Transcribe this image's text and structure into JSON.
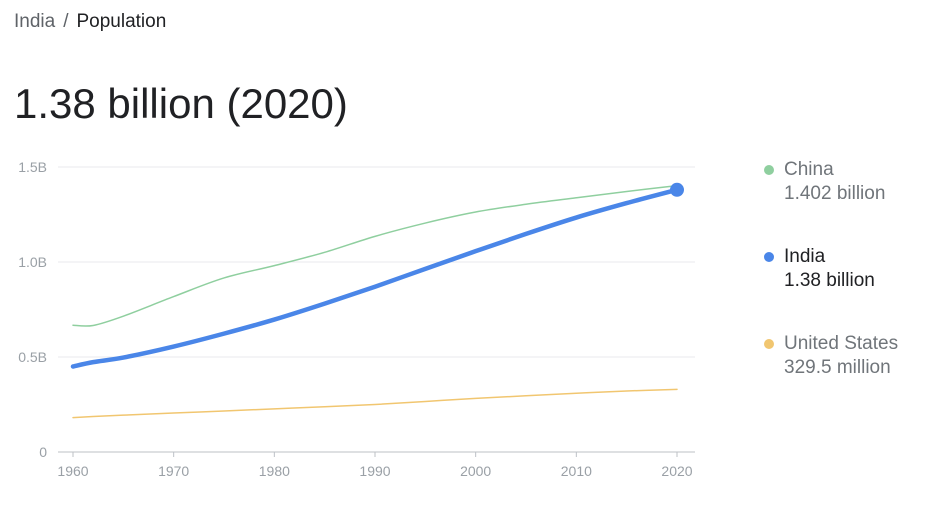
{
  "breadcrumb": {
    "root": "India",
    "separator": "/",
    "current": "Population"
  },
  "headline": "1.38 billion (2020)",
  "chart_data": {
    "type": "line",
    "title": "",
    "xlabel": "",
    "ylabel": "",
    "xlim": [
      1960,
      2020
    ],
    "ylim": [
      0,
      1.5
    ],
    "x_ticks": [
      1960,
      1970,
      1980,
      1990,
      2000,
      2010,
      2020
    ],
    "x_tick_labels": [
      "1960",
      "1970",
      "1980",
      "1990",
      "2000",
      "2010",
      "2020"
    ],
    "y_ticks": [
      0,
      0.5,
      1.0,
      1.5
    ],
    "y_tick_labels": [
      "0",
      "0.5B",
      "1.0B",
      "1.5B"
    ],
    "grid": true,
    "legend_position": "right",
    "x": [
      1960,
      1962,
      1965,
      1970,
      1975,
      1980,
      1985,
      1990,
      1995,
      2000,
      2005,
      2010,
      2015,
      2020
    ],
    "series": [
      {
        "name": "China",
        "color": "#8fcf9f",
        "width": 1.5,
        "values": [
          0.667,
          0.666,
          0.715,
          0.818,
          0.916,
          0.981,
          1.051,
          1.135,
          1.205,
          1.263,
          1.304,
          1.338,
          1.371,
          1.402
        ]
      },
      {
        "name": "India",
        "color": "#4a86e8",
        "width": 4.5,
        "values": [
          0.45,
          0.473,
          0.497,
          0.555,
          0.623,
          0.697,
          0.781,
          0.87,
          0.964,
          1.057,
          1.148,
          1.234,
          1.31,
          1.38
        ]
      },
      {
        "name": "United States",
        "color": "#f1c670",
        "width": 1.5,
        "values": [
          0.181,
          0.187,
          0.194,
          0.205,
          0.216,
          0.227,
          0.238,
          0.25,
          0.266,
          0.282,
          0.296,
          0.309,
          0.321,
          0.3295
        ]
      }
    ],
    "highlight": {
      "series": "India",
      "x": 2020,
      "y": 1.38
    }
  },
  "legend": [
    {
      "name": "China",
      "value": "1.402 billion",
      "color": "#8fcf9f",
      "active": false
    },
    {
      "name": "India",
      "value": "1.38 billion",
      "color": "#4a86e8",
      "active": true
    },
    {
      "name": "United States",
      "value": "329.5 million",
      "color": "#f1c670",
      "active": false
    }
  ]
}
